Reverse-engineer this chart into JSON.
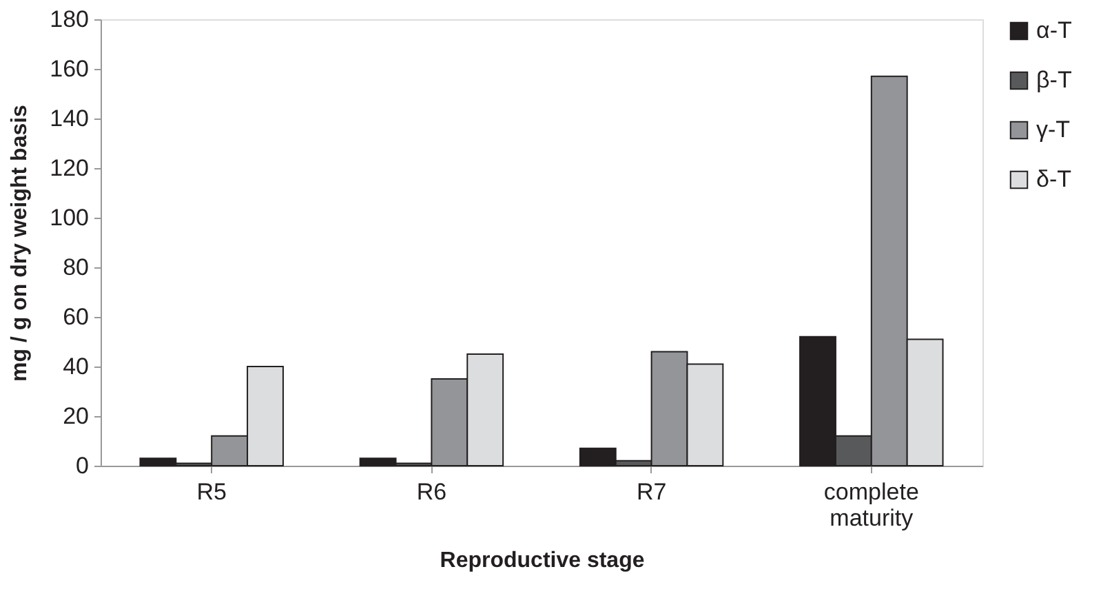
{
  "chart_data": {
    "type": "bar",
    "xlabel": "Reproductive stage",
    "ylabel": "mg / g on dry weight basis",
    "categories": [
      "R5",
      "R6",
      "R7",
      "complete maturity"
    ],
    "series": [
      {
        "name": "α-T",
        "color": "#231f20",
        "values": [
          3,
          3,
          7,
          52
        ]
      },
      {
        "name": "β-T",
        "color": "#58595b",
        "values": [
          1,
          1,
          2,
          12
        ]
      },
      {
        "name": "γ-T",
        "color": "#939598",
        "values": [
          12,
          35,
          46,
          157
        ]
      },
      {
        "name": "δ-T",
        "color": "#dcdddf",
        "values": [
          40,
          45,
          41,
          51
        ]
      }
    ],
    "ylim": [
      0,
      180
    ],
    "yticks": [
      0,
      20,
      40,
      60,
      80,
      100,
      120,
      140,
      160,
      180
    ],
    "grid": false,
    "legend": "right"
  }
}
